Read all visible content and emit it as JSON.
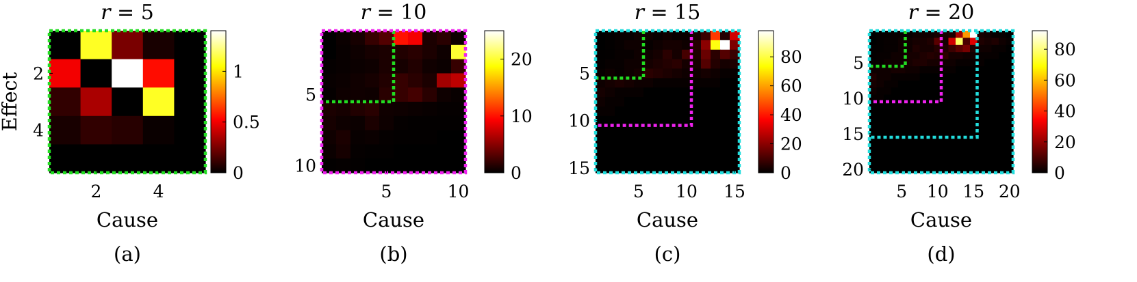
{
  "chart_data": [
    {
      "type": "heatmap",
      "title_var": "r",
      "title_eq": " = 5",
      "subfigure_label": "(a)",
      "xlabel": "Cause",
      "ylabel": "Effect",
      "n": 5,
      "xticks": [
        2,
        4
      ],
      "yticks": [
        2,
        4
      ],
      "clim": [
        0,
        1.4
      ],
      "colorbar_ticks": [
        0,
        0.5,
        1
      ],
      "colorbar_tick_labels": [
        "0",
        "0.5",
        "1"
      ],
      "border_color": "#22dd22",
      "regions": [],
      "matrix": [
        [
          0.0,
          1.1,
          0.25,
          0.05,
          0.0
        ],
        [
          0.5,
          0.0,
          1.4,
          0.55,
          0.0
        ],
        [
          0.1,
          0.35,
          0.0,
          1.1,
          0.0
        ],
        [
          0.05,
          0.1,
          0.08,
          0.02,
          0.0
        ],
        [
          0.0,
          0.0,
          0.0,
          0.0,
          0.0
        ]
      ]
    },
    {
      "type": "heatmap",
      "title_var": "r",
      "title_eq": " = 10",
      "subfigure_label": "(b)",
      "xlabel": "Cause",
      "ylabel": "",
      "n": 10,
      "xticks": [
        5,
        10
      ],
      "yticks": [
        5,
        10
      ],
      "clim": [
        0,
        25
      ],
      "colorbar_ticks": [
        0,
        10,
        20
      ],
      "colorbar_tick_labels": [
        "0",
        "10",
        "20"
      ],
      "border_color": "#ee22ee",
      "regions": [
        {
          "size": 5,
          "color": "#22dd22"
        }
      ],
      "matrix": [
        [
          0,
          0.4,
          0.8,
          2,
          3,
          10,
          9,
          1,
          1.5,
          0.5
        ],
        [
          0,
          0.3,
          0.5,
          0.8,
          1,
          1.2,
          1.5,
          1.0,
          0.5,
          20
        ],
        [
          0.2,
          0.3,
          0.4,
          0.5,
          1,
          0.8,
          1.2,
          0.6,
          0.4,
          2
        ],
        [
          0.3,
          0.4,
          0.6,
          0.8,
          1.2,
          2,
          1.5,
          1,
          6,
          7
        ],
        [
          0.2,
          0.5,
          0.6,
          0.5,
          1.5,
          2,
          2.5,
          1.5,
          0.5,
          0.3
        ],
        [
          1,
          0.8,
          1.2,
          1.5,
          0.6,
          0.5,
          0.4,
          0.3,
          0.2,
          0.2
        ],
        [
          0.8,
          0.5,
          0.4,
          1,
          0.5,
          0.2,
          0.1,
          0.1,
          0.1,
          0.1
        ],
        [
          0.6,
          1,
          0.3,
          0.4,
          0.2,
          0.1,
          0.1,
          0.1,
          0,
          0
        ],
        [
          0.4,
          0.8,
          0.2,
          0.1,
          0.1,
          0,
          0,
          0,
          0,
          0
        ],
        [
          0.1,
          0.2,
          0.1,
          0,
          0,
          0,
          0,
          0,
          0,
          0
        ]
      ]
    },
    {
      "type": "heatmap",
      "title_var": "r",
      "title_eq": " = 15",
      "subfigure_label": "(c)",
      "xlabel": "Cause",
      "ylabel": "",
      "n": 15,
      "xticks": [
        5,
        10,
        15
      ],
      "yticks": [
        5,
        10,
        15
      ],
      "clim": [
        0,
        98
      ],
      "colorbar_ticks": [
        0,
        20,
        40,
        60,
        80
      ],
      "colorbar_tick_labels": [
        "0",
        "20",
        "40",
        "60",
        "80"
      ],
      "border_color": "#22dddd",
      "regions": [
        {
          "size": 5,
          "color": "#22dd22"
        },
        {
          "size": 10,
          "color": "#ee22ee"
        }
      ],
      "matrix": [
        [
          0,
          0.5,
          1,
          1,
          2,
          2,
          1,
          2,
          1,
          1,
          3,
          8,
          45,
          5,
          30
        ],
        [
          0,
          0.5,
          1,
          2,
          2,
          1,
          2,
          3,
          3,
          2,
          5,
          20,
          75,
          98,
          18
        ],
        [
          0.3,
          0.5,
          1,
          1,
          2,
          2,
          3,
          6,
          3,
          10,
          4,
          15,
          6,
          12,
          8
        ],
        [
          0.5,
          1,
          1,
          2,
          2,
          3,
          4,
          5,
          6,
          3,
          3,
          12,
          5,
          3,
          4
        ],
        [
          1,
          2,
          1,
          2,
          3,
          6,
          5,
          4,
          3,
          2,
          2,
          3,
          2,
          1,
          1
        ],
        [
          2,
          3,
          4,
          3,
          2,
          2,
          1,
          1,
          1,
          1,
          1,
          1,
          1,
          0,
          0
        ],
        [
          3,
          2,
          1,
          1,
          1,
          0,
          0,
          0,
          0,
          0,
          0,
          0,
          0,
          0,
          0
        ],
        [
          2,
          1,
          1,
          0,
          0,
          0,
          0,
          0,
          0,
          0,
          0,
          0,
          0,
          0,
          0
        ],
        [
          1,
          1,
          0,
          0,
          0,
          0,
          0,
          0,
          0,
          0,
          0,
          0,
          0,
          0,
          0
        ],
        [
          0,
          0,
          0,
          0,
          0,
          0,
          0,
          0,
          0,
          0,
          0,
          0,
          0,
          0,
          0
        ],
        [
          0,
          0,
          0,
          0,
          0,
          0,
          0,
          0,
          0,
          0,
          0,
          0,
          0,
          0,
          0
        ],
        [
          0,
          0,
          0,
          0,
          0,
          0,
          0,
          0,
          0,
          0,
          0,
          0,
          0,
          0,
          0
        ],
        [
          0,
          0,
          0,
          0,
          0,
          0,
          0,
          0,
          0,
          0,
          0,
          0,
          0,
          0,
          0
        ],
        [
          0,
          0,
          0,
          0,
          0,
          0,
          0,
          0,
          0,
          0,
          0,
          0,
          0,
          0,
          0
        ],
        [
          0,
          0,
          0,
          0,
          0,
          0,
          0,
          0,
          0,
          0,
          0,
          0,
          0,
          0,
          0
        ]
      ]
    },
    {
      "type": "heatmap",
      "title_var": "r",
      "title_eq": " = 20",
      "subfigure_label": "(d)",
      "xlabel": "Cause",
      "ylabel": "",
      "n": 20,
      "xticks": [
        5,
        10,
        15,
        20
      ],
      "yticks": [
        5,
        10,
        15,
        20
      ],
      "clim": [
        0,
        92
      ],
      "colorbar_ticks": [
        0,
        20,
        40,
        60,
        80
      ],
      "colorbar_tick_labels": [
        "0",
        "20",
        "40",
        "60",
        "80"
      ],
      "border_color": "#22dddd",
      "regions": [
        {
          "size": 5,
          "color": "#22dd22"
        },
        {
          "size": 10,
          "color": "#ee22ee"
        },
        {
          "size": 15,
          "color": "#22dddd"
        }
      ],
      "matrix": [
        [
          0,
          0.5,
          0.5,
          1,
          1,
          1,
          2,
          2,
          2,
          3,
          3,
          4,
          22,
          55,
          92,
          3,
          2,
          1,
          1,
          0
        ],
        [
          0,
          0.5,
          1,
          1,
          2,
          2,
          3,
          3,
          4,
          12,
          3,
          28,
          78,
          10,
          30,
          4,
          3,
          4,
          2,
          1
        ],
        [
          0.5,
          0.5,
          1,
          1,
          2,
          2,
          4,
          3,
          3,
          5,
          4,
          8,
          12,
          16,
          4,
          2,
          2,
          1,
          1,
          0
        ],
        [
          0.5,
          1,
          1,
          2,
          2,
          3,
          3,
          4,
          5,
          4,
          6,
          3,
          3,
          2,
          2,
          1,
          1,
          1,
          0,
          0
        ],
        [
          1,
          1,
          2,
          2,
          2,
          3,
          4,
          4,
          3,
          3,
          2,
          2,
          1,
          1,
          1,
          1,
          0,
          0,
          0,
          0
        ],
        [
          2,
          2,
          2,
          3,
          3,
          2,
          2,
          1,
          1,
          1,
          1,
          1,
          0,
          0,
          0,
          0,
          0,
          0,
          0,
          0
        ],
        [
          4,
          2,
          2,
          1,
          1,
          1,
          1,
          0,
          0,
          0,
          0,
          0,
          0,
          0,
          0,
          0,
          0,
          0,
          0,
          0
        ],
        [
          3,
          2,
          1,
          1,
          0,
          0,
          0,
          0,
          0,
          0,
          0,
          0,
          0,
          0,
          0,
          0,
          0,
          0,
          0,
          0
        ],
        [
          2,
          1,
          1,
          0,
          0,
          0,
          0,
          0,
          0,
          0,
          0,
          0,
          0,
          0,
          0,
          0,
          0,
          0,
          0,
          0
        ],
        [
          1,
          1,
          0,
          0,
          0,
          0,
          0,
          0,
          0,
          0,
          0,
          0,
          0,
          0,
          0,
          0,
          0,
          0,
          0,
          0
        ],
        [
          0,
          0,
          0,
          0,
          0,
          0,
          0,
          0,
          0,
          0,
          0,
          0,
          0,
          0,
          0,
          0,
          0,
          0,
          0,
          0
        ],
        [
          0,
          0,
          0,
          0,
          0,
          0,
          0,
          0,
          0,
          0,
          0,
          0,
          0,
          0,
          0,
          0,
          0,
          0,
          0,
          0
        ],
        [
          0,
          0,
          0,
          0,
          0,
          0,
          0,
          0,
          0,
          0,
          0,
          0,
          0,
          0,
          0,
          0,
          0,
          0,
          0,
          0
        ],
        [
          0,
          0,
          0,
          0,
          0,
          0,
          0,
          0,
          0,
          0,
          0,
          0,
          0,
          0,
          0,
          0,
          0,
          0,
          0,
          0
        ],
        [
          0,
          0,
          0,
          0,
          0,
          0,
          0,
          0,
          0,
          0,
          0,
          0,
          0,
          0,
          0,
          0,
          0,
          0,
          0,
          0
        ],
        [
          0,
          0,
          0,
          0,
          0,
          0,
          0,
          0,
          0,
          0,
          0,
          0,
          0,
          0,
          0,
          0,
          0,
          0,
          0,
          0
        ],
        [
          0,
          0,
          0,
          0,
          0,
          0,
          0,
          0,
          0,
          0,
          0,
          0,
          0,
          0,
          0,
          0,
          0,
          0,
          0,
          0
        ],
        [
          0,
          0,
          0,
          0,
          0,
          0,
          0,
          0,
          0,
          0,
          0,
          0,
          0,
          0,
          0,
          0,
          0,
          0,
          0,
          0
        ],
        [
          0,
          0,
          0,
          0,
          0,
          0,
          0,
          0,
          0,
          0,
          0,
          0,
          0,
          0,
          0,
          0,
          0,
          0,
          0,
          0
        ],
        [
          0,
          0,
          0,
          0,
          0,
          0,
          0,
          0,
          0,
          0,
          0,
          0,
          0,
          0,
          0,
          0,
          0,
          0,
          0,
          0
        ]
      ]
    }
  ]
}
